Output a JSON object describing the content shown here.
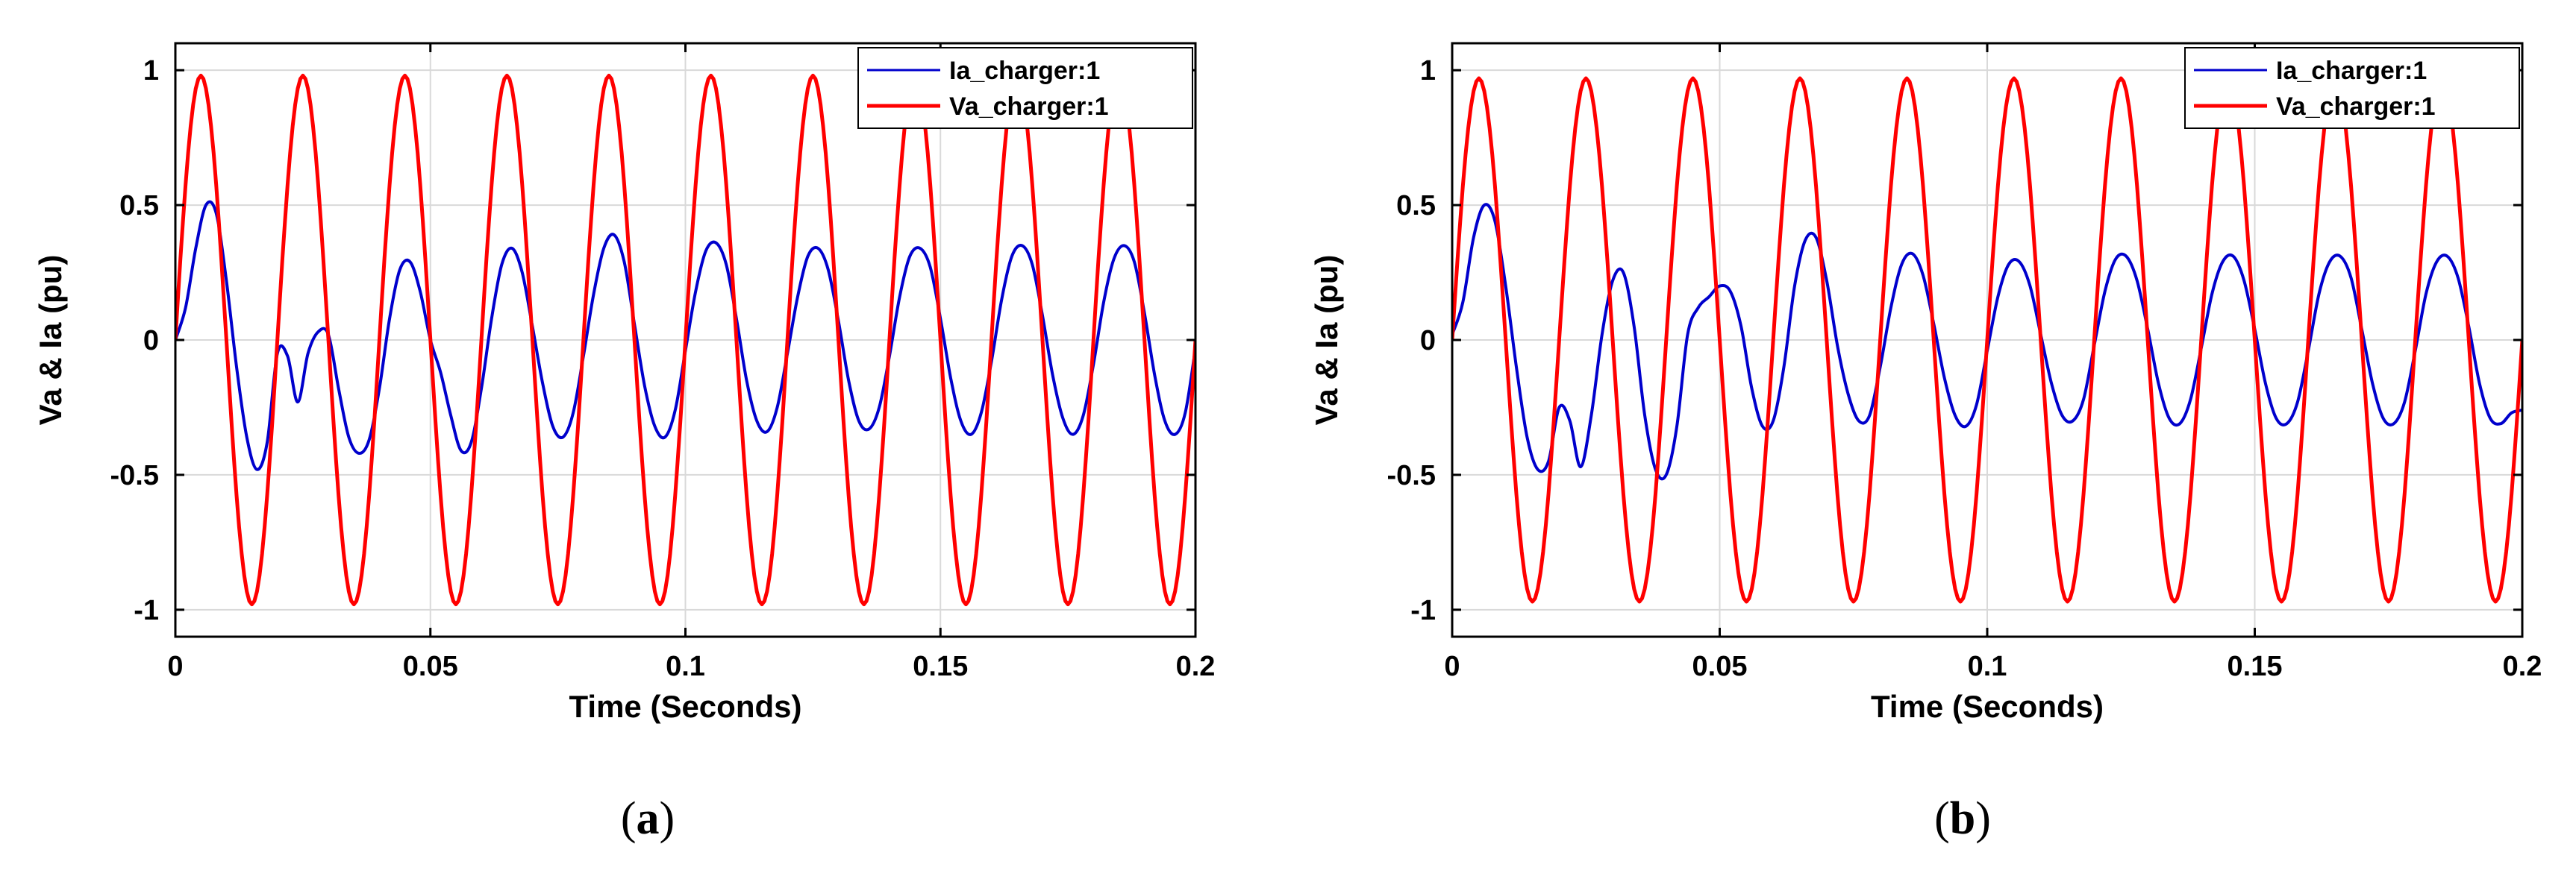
{
  "chart_data": [
    {
      "type": "line",
      "panel_label_open": "(",
      "panel_label_letter": "a",
      "panel_label_close": ")",
      "xlabel": "Time (Seconds)",
      "ylabel": "Va & Ia (pu)",
      "xlim": [
        0,
        0.2
      ],
      "ylim": [
        -1.1,
        1.1
      ],
      "xticks": [
        0,
        0.05,
        0.1,
        0.15,
        0.2
      ],
      "xtick_labels": [
        "0",
        "0.05",
        "0.1",
        "0.15",
        "0.2"
      ],
      "yticks": [
        -1,
        -0.5,
        0,
        0.5,
        1
      ],
      "ytick_labels": [
        "-1",
        "-0.5",
        "0",
        "0.5",
        "1"
      ],
      "grid": true,
      "legend": "top-right",
      "series": [
        {
          "name": "Ia_charger:1",
          "color": "#0000CC",
          "x": [
            0,
            0.002,
            0.004,
            0.006,
            0.008,
            0.01,
            0.012,
            0.014,
            0.016,
            0.018,
            0.02,
            0.022,
            0.024,
            0.026,
            0.028,
            0.03,
            0.032,
            0.034,
            0.036,
            0.038,
            0.04,
            0.042,
            0.044,
            0.046,
            0.048,
            0.05,
            0.052,
            0.054,
            0.056,
            0.058,
            0.06,
            0.062,
            0.064,
            0.066,
            0.068,
            0.07,
            0.072,
            0.074,
            0.076,
            0.078,
            0.08,
            0.082,
            0.084,
            0.086,
            0.088,
            0.09,
            0.092,
            0.094,
            0.096,
            0.098,
            0.1,
            0.102,
            0.104,
            0.106,
            0.108,
            0.11,
            0.112,
            0.114,
            0.116,
            0.118,
            0.12,
            0.122,
            0.124,
            0.126,
            0.128,
            0.13,
            0.132,
            0.134,
            0.136,
            0.138,
            0.14,
            0.142,
            0.144,
            0.146,
            0.148,
            0.15,
            0.152,
            0.154,
            0.156,
            0.158,
            0.16,
            0.162,
            0.164,
            0.166,
            0.168,
            0.17,
            0.172,
            0.174,
            0.176,
            0.178,
            0.18,
            0.182,
            0.184,
            0.186,
            0.188,
            0.19,
            0.192,
            0.194,
            0.196,
            0.198,
            0.2
          ],
          "values": [
            0.0,
            0.12,
            0.34,
            0.5,
            0.47,
            0.22,
            -0.1,
            -0.36,
            -0.48,
            -0.38,
            -0.05,
            -0.06,
            -0.23,
            -0.05,
            0.03,
            0.02,
            -0.18,
            -0.36,
            -0.42,
            -0.37,
            -0.18,
            0.08,
            0.26,
            0.29,
            0.18,
            0.0,
            -0.12,
            -0.28,
            -0.41,
            -0.38,
            -0.18,
            0.08,
            0.28,
            0.34,
            0.25,
            0.05,
            -0.16,
            -0.32,
            -0.36,
            -0.27,
            -0.06,
            0.17,
            0.34,
            0.39,
            0.29,
            0.06,
            -0.17,
            -0.32,
            -0.36,
            -0.26,
            -0.04,
            0.18,
            0.33,
            0.36,
            0.28,
            0.08,
            -0.15,
            -0.3,
            -0.34,
            -0.25,
            -0.05,
            0.16,
            0.31,
            0.34,
            0.26,
            0.07,
            -0.15,
            -0.3,
            -0.33,
            -0.25,
            -0.06,
            0.16,
            0.31,
            0.34,
            0.27,
            0.08,
            -0.14,
            -0.3,
            -0.35,
            -0.27,
            -0.08,
            0.15,
            0.31,
            0.35,
            0.28,
            0.09,
            -0.13,
            -0.29,
            -0.35,
            -0.28,
            -0.09,
            0.14,
            0.3,
            0.35,
            0.29,
            0.1,
            -0.13,
            -0.3,
            -0.35,
            -0.27,
            -0.03
          ]
        },
        {
          "name": "Va_charger:1",
          "color": "#FF0000",
          "amplitude": 0.98,
          "frequency_hz": 50,
          "sample_step": 0.0005,
          "x_start": 0,
          "x_end": 0.2
        }
      ]
    },
    {
      "type": "line",
      "panel_label_open": "(",
      "panel_label_letter": "b",
      "panel_label_close": ")",
      "xlabel": "Time (Seconds)",
      "ylabel": "Va & Ia (pu)",
      "xlim": [
        0,
        0.2
      ],
      "ylim": [
        -1.1,
        1.1
      ],
      "xticks": [
        0,
        0.05,
        0.1,
        0.15,
        0.2
      ],
      "xtick_labels": [
        "0",
        "0.05",
        "0.1",
        "0.15",
        "0.2"
      ],
      "yticks": [
        -1,
        -0.5,
        0,
        0.5,
        1
      ],
      "ytick_labels": [
        "-1",
        "-0.5",
        "0",
        "0.5",
        "1"
      ],
      "grid": true,
      "legend": "top-right",
      "series": [
        {
          "name": "Ia_charger:1",
          "color": "#0000CC",
          "x": [
            0,
            0.002,
            0.004,
            0.006,
            0.008,
            0.01,
            0.012,
            0.014,
            0.016,
            0.018,
            0.02,
            0.022,
            0.024,
            0.026,
            0.028,
            0.03,
            0.032,
            0.034,
            0.036,
            0.038,
            0.04,
            0.042,
            0.044,
            0.046,
            0.048,
            0.05,
            0.052,
            0.054,
            0.056,
            0.058,
            0.06,
            0.062,
            0.064,
            0.066,
            0.068,
            0.07,
            0.072,
            0.074,
            0.076,
            0.078,
            0.08,
            0.082,
            0.084,
            0.086,
            0.088,
            0.09,
            0.092,
            0.094,
            0.096,
            0.098,
            0.1,
            0.102,
            0.104,
            0.106,
            0.108,
            0.11,
            0.112,
            0.114,
            0.116,
            0.118,
            0.12,
            0.122,
            0.124,
            0.126,
            0.128,
            0.13,
            0.132,
            0.134,
            0.136,
            0.138,
            0.14,
            0.142,
            0.144,
            0.146,
            0.148,
            0.15,
            0.152,
            0.154,
            0.156,
            0.158,
            0.16,
            0.162,
            0.164,
            0.166,
            0.168,
            0.17,
            0.172,
            0.174,
            0.176,
            0.178,
            0.18,
            0.182,
            0.184,
            0.186,
            0.188,
            0.19,
            0.192,
            0.194,
            0.196,
            0.198,
            0.2
          ],
          "values": [
            0.02,
            0.14,
            0.38,
            0.5,
            0.44,
            0.2,
            -0.1,
            -0.36,
            -0.48,
            -0.45,
            -0.25,
            -0.3,
            -0.47,
            -0.28,
            0.02,
            0.22,
            0.25,
            0.05,
            -0.28,
            -0.48,
            -0.5,
            -0.32,
            0.02,
            0.12,
            0.16,
            0.2,
            0.18,
            0.05,
            -0.18,
            -0.32,
            -0.3,
            -0.1,
            0.2,
            0.37,
            0.38,
            0.22,
            -0.02,
            -0.2,
            -0.3,
            -0.28,
            -0.1,
            0.12,
            0.28,
            0.32,
            0.24,
            0.06,
            -0.14,
            -0.28,
            -0.32,
            -0.24,
            -0.04,
            0.16,
            0.28,
            0.29,
            0.2,
            0.02,
            -0.16,
            -0.28,
            -0.3,
            -0.22,
            -0.02,
            0.18,
            0.3,
            0.31,
            0.22,
            0.04,
            -0.16,
            -0.29,
            -0.31,
            -0.22,
            -0.03,
            0.17,
            0.29,
            0.31,
            0.22,
            0.04,
            -0.16,
            -0.29,
            -0.31,
            -0.23,
            -0.04,
            0.17,
            0.29,
            0.31,
            0.23,
            0.04,
            -0.16,
            -0.29,
            -0.31,
            -0.23,
            -0.04,
            0.17,
            0.29,
            0.31,
            0.23,
            0.05,
            -0.16,
            -0.29,
            -0.31,
            -0.27,
            -0.26
          ]
        },
        {
          "name": "Va_charger:1",
          "color": "#FF0000",
          "amplitude": 0.97,
          "frequency_hz": 50,
          "sample_step": 0.0005,
          "x_start": 0,
          "x_end": 0.2
        }
      ]
    }
  ],
  "colors": {
    "grid": "#D9D9D9",
    "axes": "#000000",
    "background": "#FFFFFF"
  }
}
